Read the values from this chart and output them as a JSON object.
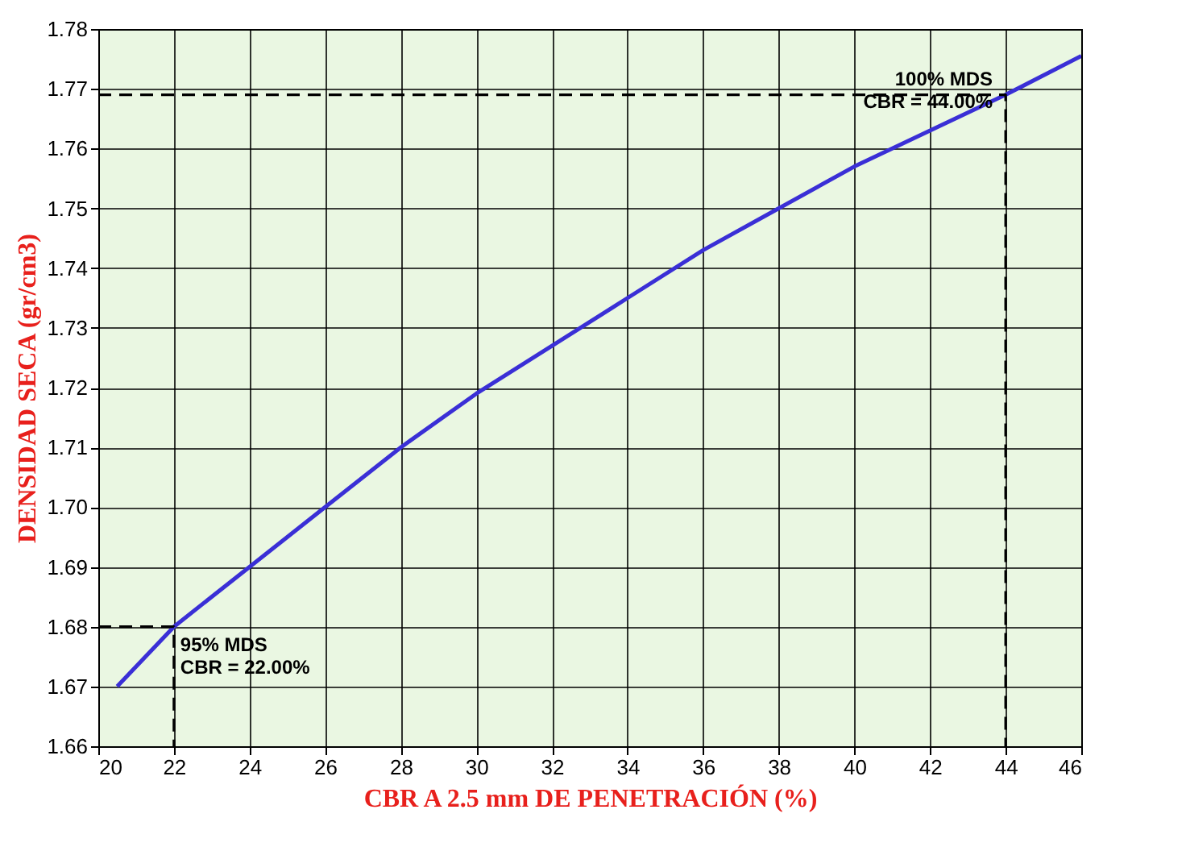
{
  "chart_data": {
    "type": "line",
    "xlabel": "CBR A 2.5 mm DE PENETRACIÓN (%)",
    "ylabel": "DENSIDAD SECA (gr/cm3)",
    "xlim": [
      20,
      46
    ],
    "xticks": [
      20,
      22,
      24,
      26,
      28,
      30,
      32,
      34,
      36,
      38,
      40,
      42,
      44,
      46
    ],
    "ylim": [
      1.66,
      1.78
    ],
    "yticks": [
      1.66,
      1.67,
      1.68,
      1.69,
      {
        "value": 1.7,
        "label": "1.70"
      },
      1.71,
      1.72,
      1.73,
      1.74,
      1.75,
      1.76,
      1.77,
      1.78
    ],
    "grid": true,
    "series": [
      {
        "color": "#3a2fd6",
        "line_style": "solid",
        "x": [
          20.5,
          22,
          24,
          26,
          28,
          30,
          32,
          34,
          36,
          38,
          40,
          42,
          44,
          46
        ],
        "values": [
          1.67,
          1.68,
          1.69,
          1.7,
          1.71,
          1.719,
          1.727,
          1.735,
          1.743,
          1.75,
          1.757,
          1.763,
          1.769,
          1.7755
        ]
      },
      {
        "color": "#000000",
        "line_style": "dashed",
        "x": [
          20,
          44,
          44
        ],
        "values": [
          1.769,
          1.769,
          1.66
        ]
      },
      {
        "color": "#000000",
        "line_style": "dashed",
        "x": [
          20,
          22,
          22
        ],
        "values": [
          1.68,
          1.68,
          1.66
        ]
      }
    ],
    "annotations": [
      {
        "text": "100% MDS\nCBR = 44.00%",
        "x": 44,
        "y": 1.769
      },
      {
        "text": "95% MDS\nCBR = 22.00%",
        "x": 22,
        "y": 1.68
      }
    ]
  }
}
